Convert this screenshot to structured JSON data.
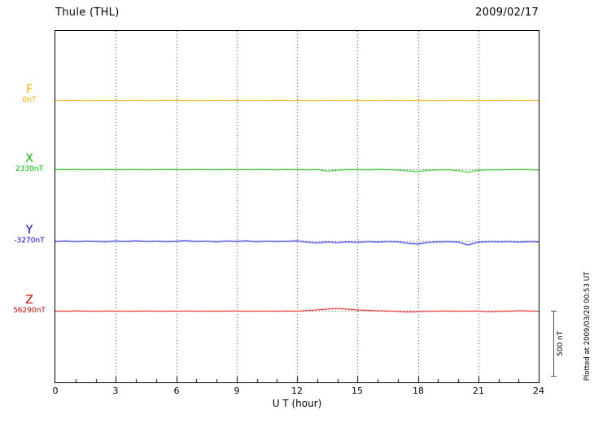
{
  "header": {
    "station_title": "Thule (THL)",
    "date": "2009/02/17"
  },
  "x_axis": {
    "label": "U T (hour)",
    "ticks": [
      "0",
      "3",
      "6",
      "9",
      "12",
      "15",
      "18",
      "21",
      "24"
    ]
  },
  "scale_bar": {
    "label": "500 nT",
    "value_nT": 500
  },
  "footer_note": "Plotted at 2009/03/20 00:53 UT",
  "chart_data": {
    "type": "line",
    "title": "Thule (THL)",
    "date": "2009/02/17",
    "xlabel": "U T (hour)",
    "x_range": [
      0,
      24
    ],
    "x_tick_step": 3,
    "x_step_hours": 0.5,
    "grid": "dotted vertical lines every 3 h; dotted horizontal line at each trace baseline",
    "legend_position": "left margin, one colored label per trace",
    "scale": {
      "bar_nT": 500
    },
    "series": [
      {
        "name": "F",
        "label": "F",
        "baseline_label": "0nT",
        "baseline_nT": 0,
        "color": "#FFA500",
        "values": [
          0,
          0,
          0,
          0,
          0,
          0,
          0,
          0,
          0,
          0,
          0,
          0,
          0,
          0,
          0,
          0,
          0,
          0,
          0,
          0,
          0,
          0,
          0,
          0,
          0,
          0,
          0,
          0,
          0,
          0,
          0,
          0,
          0,
          0,
          0,
          0,
          0,
          0,
          0,
          0,
          0,
          0,
          0,
          0,
          0,
          0,
          0,
          0,
          0
        ]
      },
      {
        "name": "X",
        "label": "X",
        "baseline_label": "2330nT",
        "baseline_nT": 2330,
        "color": "#00C000",
        "values": [
          1,
          0,
          2,
          -1,
          0,
          1,
          -1,
          0,
          1,
          -1,
          0,
          1,
          0,
          -1,
          1,
          0,
          -1,
          1,
          0,
          -1,
          1,
          0,
          -1,
          1,
          0,
          -2,
          1,
          -12,
          -4,
          1,
          0,
          -2,
          1,
          0,
          -3,
          -10,
          -16,
          -5,
          -2,
          -1,
          -8,
          -20,
          -5,
          -1,
          -2,
          0,
          1,
          0,
          -3
        ]
      },
      {
        "name": "Y",
        "label": "Y",
        "baseline_label": "-3270nT",
        "baseline_nT": -3270,
        "color": "#0000EE",
        "values": [
          -2,
          2,
          -3,
          1,
          -1,
          -4,
          2,
          -2,
          3,
          -2,
          1,
          -3,
          0,
          4,
          -2,
          1,
          -5,
          2,
          -1,
          3,
          -4,
          1,
          -2,
          0,
          3,
          -8,
          -14,
          -6,
          -12,
          -5,
          -10,
          -3,
          -7,
          -2,
          -5,
          -16,
          -22,
          -10,
          -5,
          -3,
          -8,
          -28,
          -8,
          -3,
          -5,
          -2,
          -7,
          -3,
          -5
        ]
      },
      {
        "name": "Z",
        "label": "Z",
        "baseline_label": "56290nT",
        "baseline_nT": 56290,
        "color": "#DD0000",
        "values": [
          1,
          -1,
          2,
          0,
          -1,
          1,
          0,
          -1,
          0,
          1,
          -1,
          0,
          0,
          1,
          -1,
          0,
          -1,
          0,
          1,
          -1,
          0,
          0,
          -1,
          1,
          0,
          4,
          10,
          16,
          20,
          15,
          10,
          6,
          3,
          1,
          -2,
          -6,
          -3,
          -1,
          0,
          1,
          -1,
          0,
          1,
          -4,
          -1,
          0,
          3,
          1,
          0
        ]
      }
    ]
  }
}
